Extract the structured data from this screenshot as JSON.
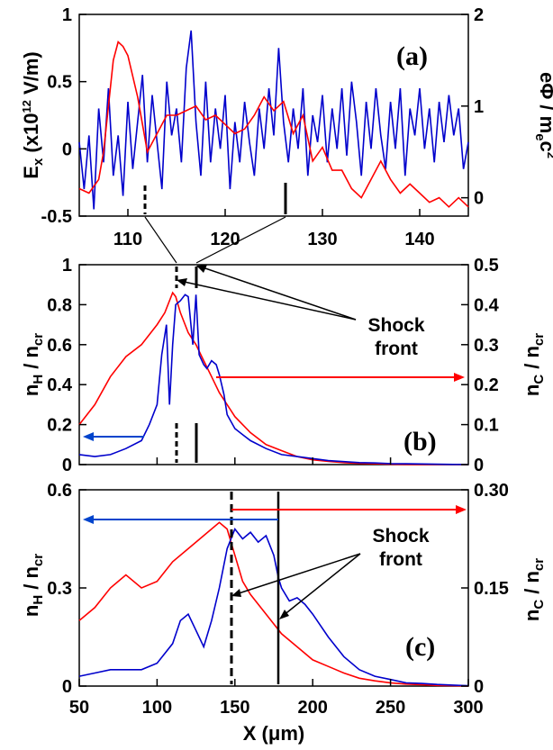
{
  "chart_data": [
    {
      "panel": "a",
      "type": "line",
      "panel_label": "(a)",
      "xlim": [
        105,
        145
      ],
      "x_ticks": [
        "110",
        "120",
        "130",
        "140"
      ],
      "ylim": [
        -0.5,
        1
      ],
      "y_ticks": [
        "-0.5",
        "0",
        "0.5",
        "1"
      ],
      "ylabel": "Ex (x10¹² V/m)",
      "y2lim": [
        -0.2,
        2
      ],
      "y2_ticks": [
        "0",
        "1",
        "2"
      ],
      "y2label": "eΦ / mec²",
      "series": [
        {
          "axis": "left",
          "color": "#0000cc",
          "x": [
            105,
            105.5,
            106,
            106.5,
            107,
            107.5,
            108,
            108.5,
            109,
            109.5,
            110,
            110.5,
            111,
            111.5,
            112,
            112.5,
            113,
            113.5,
            114,
            114.5,
            115,
            115.5,
            116,
            116.5,
            117,
            117.5,
            118,
            118.5,
            119,
            119.5,
            120,
            120.5,
            121,
            121.5,
            122,
            122.5,
            123,
            123.5,
            124,
            124.5,
            125,
            125.5,
            126,
            126.5,
            127,
            127.5,
            128,
            128.5,
            129,
            129.5,
            130,
            130.5,
            131,
            131.5,
            132,
            132.5,
            133,
            133.5,
            134,
            134.5,
            135,
            135.5,
            136,
            136.5,
            137,
            137.5,
            138,
            138.5,
            139,
            139.5,
            140,
            140.5,
            141,
            141.5,
            142,
            142.5,
            143,
            143.5,
            144,
            144.5,
            145
          ],
          "y": [
            0.05,
            -0.3,
            0.1,
            -0.45,
            0.3,
            -0.1,
            0.45,
            -0.2,
            0.1,
            -0.35,
            0.35,
            -0.15,
            0.2,
            0.55,
            -0.1,
            0.4,
            0.05,
            -0.3,
            0.5,
            0.1,
            0.3,
            -0.1,
            0.6,
            0.88,
            0.2,
            -0.2,
            0.5,
            -0.1,
            0.3,
            0.0,
            0.4,
            -0.3,
            0.2,
            -0.1,
            0.35,
            0.05,
            -0.2,
            0.3,
            0.0,
            0.45,
            0.1,
            0.75,
            0.2,
            -0.1,
            0.3,
            0.0,
            0.45,
            -0.2,
            0.25,
            0.05,
            0.4,
            -0.1,
            0.3,
            0.0,
            0.45,
            -0.05,
            0.5,
            0.2,
            -0.2,
            0.35,
            0.0,
            0.45,
            0.1,
            -0.15,
            0.35,
            0.0,
            0.45,
            -0.2,
            0.3,
            0.1,
            0.45,
            0.0,
            0.3,
            -0.1,
            0.35,
            0.05,
            0.4,
            0.1,
            0.3,
            -0.15,
            0.05
          ]
        },
        {
          "axis": "right",
          "color": "#ff0000",
          "x": [
            105,
            106,
            107,
            107.5,
            108,
            108.5,
            109,
            109.5,
            110,
            111,
            112,
            113,
            114,
            115,
            116,
            117,
            118,
            119,
            120,
            121,
            122,
            123,
            124,
            125,
            126,
            127,
            128,
            129,
            130,
            131,
            132,
            133,
            134,
            135,
            136,
            137,
            138,
            139,
            140,
            141,
            142,
            143,
            144,
            145
          ],
          "y": [
            0.1,
            0.05,
            0.2,
            0.5,
            1.0,
            1.5,
            1.7,
            1.65,
            1.55,
            1.1,
            0.5,
            0.7,
            0.9,
            0.9,
            0.95,
            1.0,
            0.85,
            0.9,
            0.8,
            0.7,
            0.75,
            0.9,
            1.1,
            0.95,
            1.05,
            0.7,
            0.9,
            0.4,
            0.55,
            0.3,
            0.3,
            0.1,
            0.0,
            0.2,
            0.4,
            0.2,
            0.05,
            0.15,
            0.05,
            -0.05,
            0.0,
            -0.1,
            0.0,
            -0.1
          ]
        }
      ]
    },
    {
      "panel": "b",
      "type": "line",
      "panel_label": "(b)",
      "xlim": [
        50,
        300
      ],
      "ylim": [
        0,
        1
      ],
      "y_ticks": [
        "0",
        "0.2",
        "0.4",
        "0.6",
        "0.8",
        "1"
      ],
      "ylabel": "nH / ncr",
      "y2lim": [
        0,
        0.5
      ],
      "y2_ticks": [
        "0",
        "0.1",
        "0.2",
        "0.3",
        "0.4",
        "0.5"
      ],
      "y2label": "nC / ncr",
      "annotation": "Shock front",
      "series": [
        {
          "axis": "right",
          "color": "#ff0000",
          "x": [
            50,
            60,
            70,
            80,
            90,
            100,
            105,
            110,
            112,
            115,
            120,
            125,
            130,
            135,
            140,
            145,
            150,
            160,
            170,
            180,
            190,
            200,
            210,
            220,
            230,
            240,
            250,
            260,
            270,
            280,
            290,
            300
          ],
          "y": [
            0.1,
            0.15,
            0.22,
            0.27,
            0.3,
            0.35,
            0.38,
            0.43,
            0.42,
            0.38,
            0.33,
            0.3,
            0.26,
            0.22,
            0.18,
            0.15,
            0.12,
            0.08,
            0.05,
            0.035,
            0.02,
            0.012,
            0.008,
            0.005,
            0.003,
            0.002,
            0.001,
            0.0005,
            0.0003,
            0.0002,
            0.0001,
            0
          ]
        },
        {
          "axis": "left",
          "color": "#0000cc",
          "x": [
            50,
            60,
            70,
            80,
            90,
            95,
            100,
            103,
            106,
            108,
            110,
            112,
            115,
            118,
            120,
            123,
            125,
            127,
            130,
            132,
            135,
            138,
            140,
            143,
            145,
            150,
            155,
            160,
            170,
            180,
            190,
            200,
            210,
            220,
            230,
            240,
            250,
            260,
            270,
            280,
            290,
            300
          ],
          "y": [
            0.05,
            0.04,
            0.05,
            0.08,
            0.12,
            0.2,
            0.3,
            0.55,
            0.7,
            0.3,
            0.6,
            0.8,
            0.82,
            0.85,
            0.84,
            0.6,
            0.85,
            0.55,
            0.5,
            0.48,
            0.52,
            0.5,
            0.45,
            0.35,
            0.25,
            0.18,
            0.15,
            0.12,
            0.08,
            0.05,
            0.04,
            0.03,
            0.02,
            0.015,
            0.01,
            0.008,
            0.005,
            0.004,
            0.003,
            0.002,
            0.001,
            0
          ]
        }
      ]
    },
    {
      "panel": "c",
      "type": "line",
      "panel_label": "(c)",
      "xlim": [
        50,
        300
      ],
      "x_ticks": [
        "50",
        "100",
        "150",
        "200",
        "250",
        "300"
      ],
      "xlabel": "X (μm)",
      "ylim": [
        0,
        0.6
      ],
      "y_ticks": [
        "0",
        "0.3",
        "0.6"
      ],
      "ylabel": "nH / ncr",
      "y2lim": [
        0,
        0.3
      ],
      "y2_ticks": [
        "0",
        "0.15",
        "0.30"
      ],
      "y2label": "nC / ncr",
      "annotation": "Shock front",
      "series": [
        {
          "axis": "right",
          "color": "#ff0000",
          "x": [
            50,
            60,
            70,
            80,
            90,
            100,
            110,
            120,
            130,
            140,
            145,
            150,
            155,
            160,
            170,
            180,
            190,
            200,
            210,
            220,
            230,
            240,
            250,
            260,
            270,
            280,
            290,
            300
          ],
          "y": [
            0.1,
            0.12,
            0.15,
            0.17,
            0.15,
            0.16,
            0.19,
            0.21,
            0.23,
            0.25,
            0.24,
            0.2,
            0.16,
            0.14,
            0.11,
            0.08,
            0.06,
            0.04,
            0.03,
            0.02,
            0.012,
            0.008,
            0.005,
            0.003,
            0.002,
            0.001,
            0.0005,
            0
          ]
        },
        {
          "axis": "left",
          "color": "#0000cc",
          "x": [
            50,
            60,
            70,
            80,
            90,
            100,
            110,
            115,
            120,
            125,
            130,
            135,
            140,
            145,
            150,
            155,
            160,
            165,
            170,
            175,
            178,
            180,
            185,
            190,
            195,
            200,
            210,
            220,
            230,
            240,
            250,
            260,
            270,
            280,
            290,
            300
          ],
          "y": [
            0.03,
            0.04,
            0.05,
            0.05,
            0.05,
            0.07,
            0.13,
            0.2,
            0.22,
            0.17,
            0.12,
            0.2,
            0.3,
            0.42,
            0.48,
            0.45,
            0.47,
            0.44,
            0.46,
            0.4,
            0.33,
            0.3,
            0.26,
            0.27,
            0.25,
            0.22,
            0.15,
            0.09,
            0.05,
            0.03,
            0.02,
            0.01,
            0.008,
            0.005,
            0.003,
            0.001
          ]
        }
      ]
    }
  ]
}
